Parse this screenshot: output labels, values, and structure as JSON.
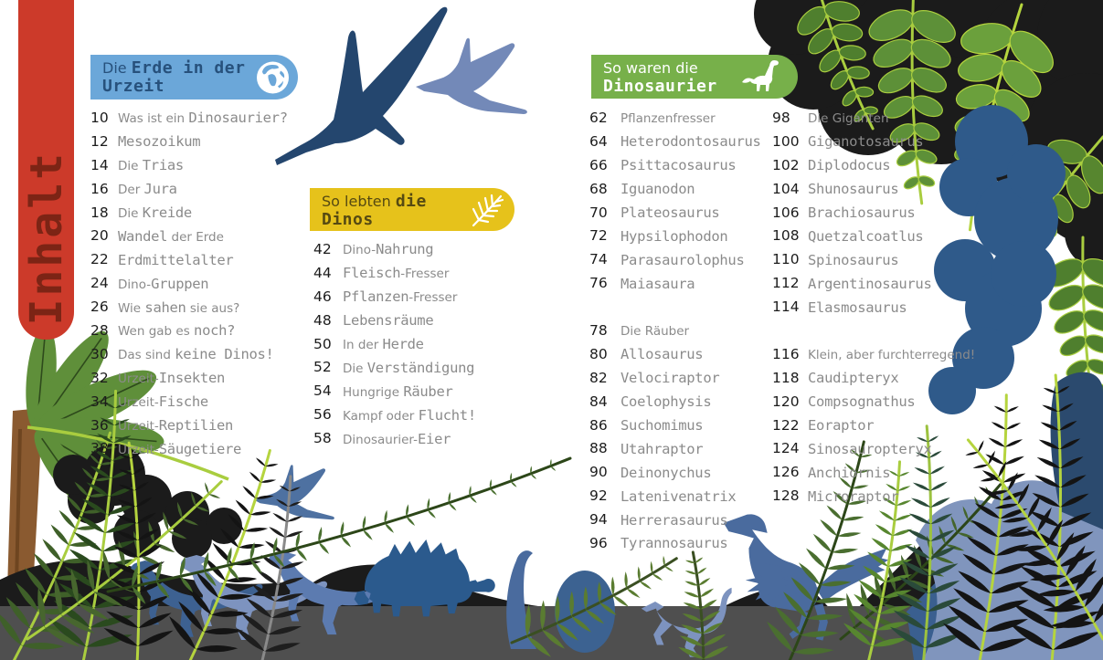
{
  "tab": {
    "label": "Inhalt"
  },
  "sections": [
    {
      "name": "erde-urzeit",
      "header": {
        "bg": "#6ba7d9",
        "text_color": "#27517c",
        "icon": "globe-icon",
        "lines": [
          [
            {
              "t": "Die ",
              "f": "h"
            },
            {
              "t": "Erde in der",
              "f": "m"
            }
          ],
          [
            {
              "t": "Urzeit",
              "f": "m"
            }
          ]
        ]
      },
      "items": [
        {
          "p": "10",
          "s": [
            {
              "t": "Was ist ein ",
              "f": "h"
            },
            {
              "t": "Dinosaurier?",
              "f": "m"
            }
          ]
        },
        {
          "p": "12",
          "s": [
            {
              "t": "Mesozoikum",
              "f": "m"
            }
          ]
        },
        {
          "p": "14",
          "s": [
            {
              "t": "Die ",
              "f": "h"
            },
            {
              "t": "Trias",
              "f": "m"
            }
          ]
        },
        {
          "p": "16",
          "s": [
            {
              "t": "Der ",
              "f": "h"
            },
            {
              "t": "Jura",
              "f": "m"
            }
          ]
        },
        {
          "p": "18",
          "s": [
            {
              "t": "Die ",
              "f": "h"
            },
            {
              "t": "Kreide",
              "f": "m"
            }
          ]
        },
        {
          "p": "20",
          "s": [
            {
              "t": "Wandel",
              "f": "m"
            },
            {
              "t": " der Erde",
              "f": "h"
            }
          ]
        },
        {
          "p": "22",
          "s": [
            {
              "t": "Erdmittelalter",
              "f": "m"
            }
          ]
        },
        {
          "p": "24",
          "s": [
            {
              "t": "Dino-",
              "f": "h"
            },
            {
              "t": "Gruppen",
              "f": "m"
            }
          ]
        },
        {
          "p": "26",
          "s": [
            {
              "t": "Wie ",
              "f": "h"
            },
            {
              "t": "sahen",
              "f": "m"
            },
            {
              "t": " sie aus?",
              "f": "h"
            }
          ]
        },
        {
          "p": "28",
          "s": [
            {
              "t": "Wen gab es ",
              "f": "h"
            },
            {
              "t": "noch?",
              "f": "m"
            }
          ]
        },
        {
          "p": "30",
          "s": [
            {
              "t": "Das sind ",
              "f": "h"
            },
            {
              "t": "keine Dinos!",
              "f": "m"
            }
          ]
        },
        {
          "p": "32",
          "s": [
            {
              "t": "Urzeit-",
              "f": "h"
            },
            {
              "t": "Insekten",
              "f": "m"
            }
          ]
        },
        {
          "p": "34",
          "s": [
            {
              "t": "Urzeit-",
              "f": "h"
            },
            {
              "t": "Fische",
              "f": "m"
            }
          ]
        },
        {
          "p": "36",
          "s": [
            {
              "t": "Urzeit-",
              "f": "h"
            },
            {
              "t": "Reptilien",
              "f": "m"
            }
          ]
        },
        {
          "p": "38",
          "s": [
            {
              "t": "Urzeit-",
              "f": "h"
            },
            {
              "t": "Säugetiere",
              "f": "m"
            }
          ]
        }
      ]
    },
    {
      "name": "lebten-dinos",
      "header": {
        "bg": "#e6c21b",
        "text_color": "#564a12",
        "icon": "fern-icon",
        "lines": [
          [
            {
              "t": "So lebten ",
              "f": "h"
            },
            {
              "t": "die",
              "f": "m"
            }
          ],
          [
            {
              "t": "Dinos",
              "f": "m"
            }
          ]
        ]
      },
      "items": [
        {
          "p": "42",
          "s": [
            {
              "t": "Dino-",
              "f": "h"
            },
            {
              "t": "Nahrung",
              "f": "m"
            }
          ]
        },
        {
          "p": "44",
          "s": [
            {
              "t": "Fleisch",
              "f": "m"
            },
            {
              "t": "-Fresser",
              "f": "h"
            }
          ]
        },
        {
          "p": "46",
          "s": [
            {
              "t": "Pflanzen",
              "f": "m"
            },
            {
              "t": "-Fresser",
              "f": "h"
            }
          ]
        },
        {
          "p": "48",
          "s": [
            {
              "t": "Lebensräume",
              "f": "m"
            }
          ]
        },
        {
          "p": "50",
          "s": [
            {
              "t": "In der ",
              "f": "h"
            },
            {
              "t": "Herde",
              "f": "m"
            }
          ]
        },
        {
          "p": "52",
          "s": [
            {
              "t": "Die ",
              "f": "h"
            },
            {
              "t": "Verständigung",
              "f": "m"
            }
          ]
        },
        {
          "p": "54",
          "s": [
            {
              "t": "Hungrige ",
              "f": "h"
            },
            {
              "t": "Räuber",
              "f": "m"
            }
          ]
        },
        {
          "p": "56",
          "s": [
            {
              "t": "Kampf oder ",
              "f": "h"
            },
            {
              "t": "Flucht!",
              "f": "m"
            }
          ]
        },
        {
          "p": "58",
          "s": [
            {
              "t": "Dinosaurier-",
              "f": "h"
            },
            {
              "t": "Eier",
              "f": "m"
            }
          ]
        }
      ]
    },
    {
      "name": "waren-dinosaurier",
      "header": {
        "bg": "#77b04a",
        "text_color": "#ffffff",
        "icon": "sauropod-icon",
        "lines": [
          [
            {
              "t": "So waren die",
              "f": "h"
            }
          ],
          [
            {
              "t": "Dinosaurier",
              "f": "m"
            }
          ]
        ]
      },
      "columns": [
        [
          {
            "p": "62",
            "s": [
              {
                "t": "Pflanzenfresser",
                "f": "h"
              }
            ]
          },
          {
            "p": "64",
            "s": [
              {
                "t": "Heterodontosaurus",
                "f": "m"
              }
            ]
          },
          {
            "p": "66",
            "s": [
              {
                "t": "Psittacosaurus",
                "f": "m"
              }
            ]
          },
          {
            "p": "68",
            "s": [
              {
                "t": "Iguanodon",
                "f": "m"
              }
            ]
          },
          {
            "p": "70",
            "s": [
              {
                "t": "Plateosaurus",
                "f": "m"
              }
            ]
          },
          {
            "p": "72",
            "s": [
              {
                "t": "Hypsilophodon",
                "f": "m"
              }
            ]
          },
          {
            "p": "74",
            "s": [
              {
                "t": "Parasaurolophus",
                "f": "m"
              }
            ]
          },
          {
            "p": "76",
            "s": [
              {
                "t": "Maiasaura",
                "f": "m"
              }
            ]
          },
          null,
          {
            "p": "78",
            "s": [
              {
                "t": "Die Räuber",
                "f": "h"
              }
            ]
          },
          {
            "p": "80",
            "s": [
              {
                "t": "Allosaurus",
                "f": "m"
              }
            ]
          },
          {
            "p": "82",
            "s": [
              {
                "t": "Velociraptor",
                "f": "m"
              }
            ]
          },
          {
            "p": "84",
            "s": [
              {
                "t": "Coelophysis",
                "f": "m"
              }
            ]
          },
          {
            "p": "86",
            "s": [
              {
                "t": "Suchomimus",
                "f": "m"
              }
            ]
          },
          {
            "p": "88",
            "s": [
              {
                "t": "Utahraptor",
                "f": "m"
              }
            ]
          },
          {
            "p": "90",
            "s": [
              {
                "t": "Deinonychus",
                "f": "m"
              }
            ]
          },
          {
            "p": "92",
            "s": [
              {
                "t": "Latenivenatrix",
                "f": "m"
              }
            ]
          },
          {
            "p": "94",
            "s": [
              {
                "t": "Herrerasaurus",
                "f": "m"
              }
            ]
          },
          {
            "p": "96",
            "s": [
              {
                "t": "Tyrannosaurus",
                "f": "m"
              }
            ]
          }
        ],
        [
          {
            "p": "98",
            "s": [
              {
                "t": "Die Giganten",
                "f": "h"
              }
            ]
          },
          {
            "p": "100",
            "s": [
              {
                "t": "Giganotosaurus",
                "f": "m"
              }
            ]
          },
          {
            "p": "102",
            "s": [
              {
                "t": "Diplodocus",
                "f": "m"
              }
            ]
          },
          {
            "p": "104",
            "s": [
              {
                "t": "Shunosaurus",
                "f": "m"
              }
            ]
          },
          {
            "p": "106",
            "s": [
              {
                "t": "Brachiosaurus",
                "f": "m"
              }
            ]
          },
          {
            "p": "108",
            "s": [
              {
                "t": "Quetzalcoatlus",
                "f": "m"
              }
            ]
          },
          {
            "p": "110",
            "s": [
              {
                "t": "Spinosaurus",
                "f": "m"
              }
            ]
          },
          {
            "p": "112",
            "s": [
              {
                "t": "Argentinosaurus",
                "f": "m"
              }
            ]
          },
          {
            "p": "114",
            "s": [
              {
                "t": "Elasmosaurus",
                "f": "m"
              }
            ]
          },
          null,
          {
            "p": "116",
            "s": [
              {
                "t": "Klein, aber furchterregend!",
                "f": "h"
              }
            ]
          },
          {
            "p": "118",
            "s": [
              {
                "t": "Caudipteryx",
                "f": "m"
              }
            ]
          },
          {
            "p": "120",
            "s": [
              {
                "t": "Compsognathus",
                "f": "m"
              }
            ]
          },
          {
            "p": "122",
            "s": [
              {
                "t": "Eoraptor",
                "f": "m"
              }
            ]
          },
          {
            "p": "124",
            "s": [
              {
                "t": "Sinosauropteryx",
                "f": "m"
              }
            ]
          },
          {
            "p": "126",
            "s": [
              {
                "t": "Anchiornis",
                "f": "m"
              }
            ]
          },
          {
            "p": "128",
            "s": [
              {
                "t": "Microraptor",
                "f": "m"
              }
            ]
          }
        ]
      ]
    }
  ],
  "artwork": {
    "silhouettes": [
      "pterosaur-large",
      "pterosaur-small",
      "pterosaur-bottom",
      "hadrosaur-herd",
      "ankylosaurus",
      "sauropod-neck",
      "dino-dome",
      "small-theropod",
      "feathered-raptor",
      "palm-tree",
      "fern-fronds",
      "jungle-leaves",
      "mountains",
      "ground-band"
    ],
    "palette": {
      "tab_red": "#cc3a2a",
      "tab_text": "#7c2415",
      "number_ink": "#1c1c1c",
      "title_ink": "#8b8b8b",
      "ptero_dark": "#24466e",
      "ptero_light": "#7389b8",
      "ptero_mid": "#4e71a1",
      "hadro_light": "#7d93bf",
      "hadro_mid": "#5c7bb0",
      "hadro_dark": "#3d6191",
      "ankylo": "#2b5a8d",
      "raptor": "#4a6b9e",
      "dome": "#3c6291",
      "black": "#1b1b1b",
      "gray_band": "#4f4f4f",
      "mtn_blue": "#3a5f8f",
      "big_blue": "#8095bd",
      "navy_patch": "#2b4a6e",
      "blob_blue": "#2f5a8a",
      "palm_green": "#5f8f3a",
      "palm_vein": "#2e4a1c",
      "trunk": "#8a5a30",
      "trunk_line": "#6e4520",
      "lime": "#a9cd3f",
      "lime_bright": "#b5d43e",
      "leaf_green1": "#5d9038",
      "leaf_green2": "#6ba03c",
      "leaf_green3": "#4f7f2e",
      "leaf_green4": "#57862f",
      "fern1": "#3f6029",
      "fern2": "#47662e",
      "fern3": "#2a4a1e",
      "fern4": "#5a7c31",
      "fern5": "#4a6e30",
      "fern6": "#44652c",
      "fern_teal": "#2a4a3a",
      "fern_black": "#141414",
      "gray_vein": "#8a8a8a",
      "dark_vein": "#2c4618",
      "dark_vein2": "#3a4f22"
    }
  }
}
